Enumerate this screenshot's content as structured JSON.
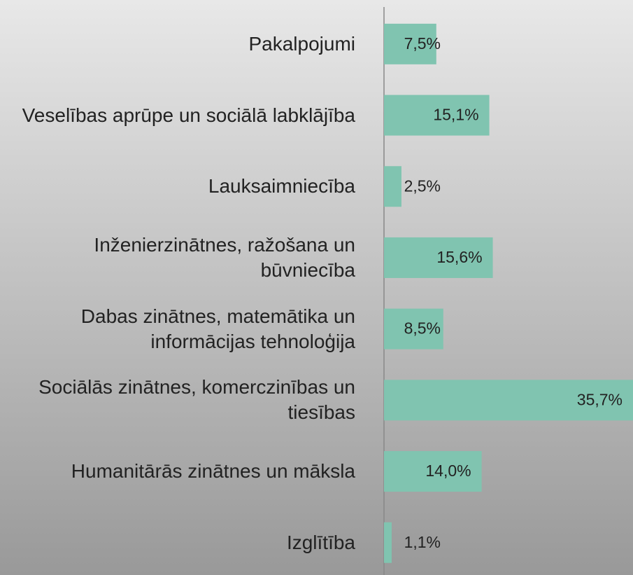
{
  "chart_data": {
    "type": "bar",
    "orientation": "horizontal",
    "categories": [
      "Pakalpojumi",
      "Veselības aprūpe un sociālā labklājība",
      "Lauksaimniecība",
      "Inženierzinātnes, ražošana un būvniecība",
      "Dabas zinātnes, matemātika un informācijas tehnoloģija",
      "Sociālās zinātnes, komerczinības un tiesības",
      "Humanitārās zinātnes un māksla",
      "Izglītība"
    ],
    "values": [
      7.5,
      15.1,
      2.5,
      15.6,
      8.5,
      35.7,
      14.0,
      1.1
    ],
    "value_labels": [
      "7,5%",
      "15,1%",
      "2,5%",
      "15,6%",
      "8,5%",
      "35,7%",
      "14,0%",
      "1,1%"
    ],
    "color": "#80c4b0",
    "grid": false
  }
}
